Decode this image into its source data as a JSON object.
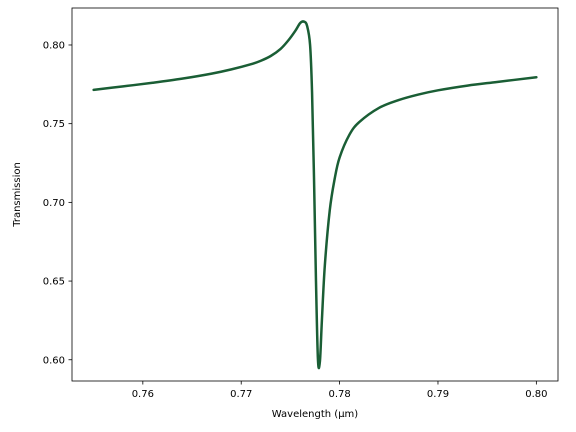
{
  "chart_data": {
    "type": "line",
    "xlabel": "Wavelength (μm)",
    "ylabel": "Transmission",
    "xlim": [
      0.7528,
      0.8022
    ],
    "ylim": [
      0.5865,
      0.8235
    ],
    "xticks": [
      0.76,
      0.77,
      0.78,
      0.79,
      0.8
    ],
    "xtick_labels": [
      "0.76",
      "0.77",
      "0.78",
      "0.79",
      "0.80"
    ],
    "yticks": [
      0.6,
      0.65,
      0.7,
      0.75,
      0.8
    ],
    "ytick_labels": [
      "0.60",
      "0.65",
      "0.70",
      "0.75",
      "0.80"
    ],
    "grid": false,
    "series": [
      {
        "color": "#1a5e35",
        "x": [
          0.755,
          0.758,
          0.761,
          0.764,
          0.767,
          0.769,
          0.771,
          0.772,
          0.773,
          0.774,
          0.7748,
          0.7755,
          0.776,
          0.7764,
          0.7767,
          0.777,
          0.7772,
          0.7774,
          0.7776,
          0.7778,
          0.778,
          0.7782,
          0.7785,
          0.779,
          0.7795,
          0.78,
          0.781,
          0.782,
          0.784,
          0.786,
          0.788,
          0.79,
          0.793,
          0.796,
          0.8
        ],
        "y": [
          0.7715,
          0.7737,
          0.776,
          0.7786,
          0.7818,
          0.7845,
          0.7878,
          0.79,
          0.793,
          0.7975,
          0.803,
          0.809,
          0.814,
          0.8148,
          0.812,
          0.8,
          0.77,
          0.715,
          0.65,
          0.6,
          0.599,
          0.625,
          0.66,
          0.695,
          0.715,
          0.7285,
          0.743,
          0.751,
          0.76,
          0.765,
          0.7685,
          0.7712,
          0.7742,
          0.7765,
          0.7795
        ]
      }
    ]
  }
}
